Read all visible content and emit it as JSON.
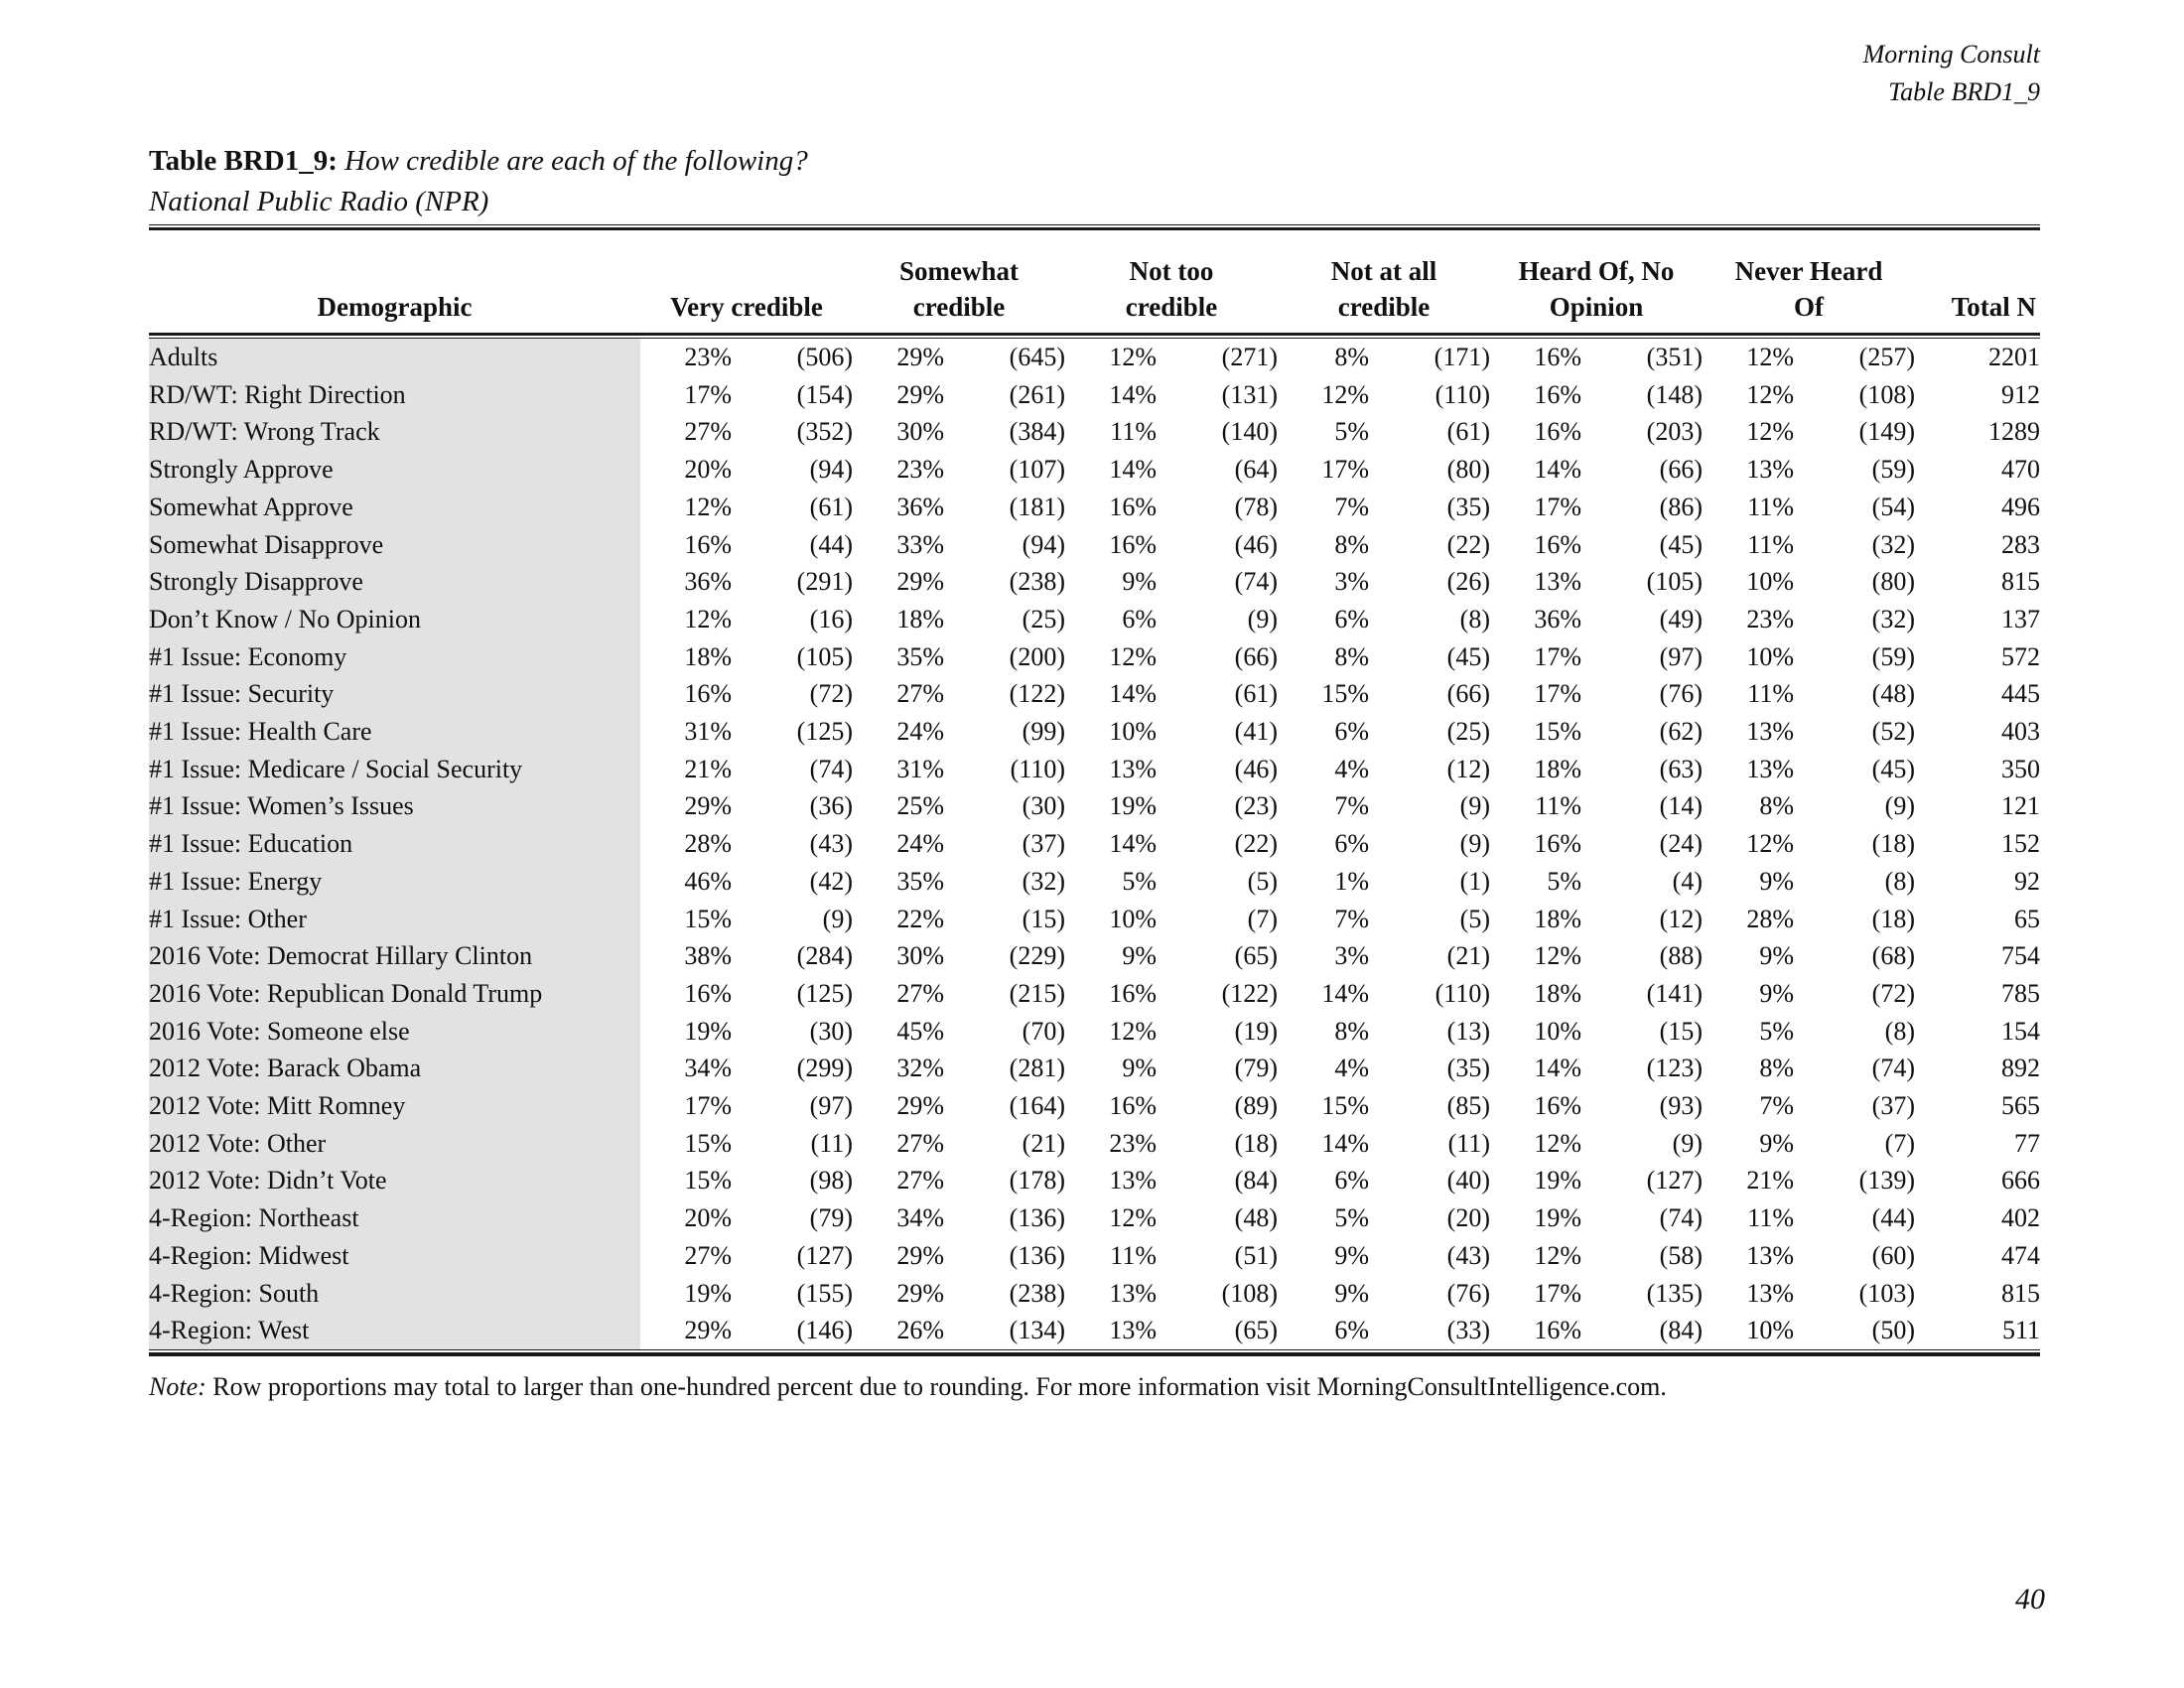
{
  "header": {
    "brand": "Morning Consult",
    "table_ref": "Table BRD1_9"
  },
  "title": {
    "label": "Table BRD1_9:",
    "question": "How credible are each of the following?",
    "subject": "National Public Radio (NPR)"
  },
  "colors": {
    "demo_band": "#e2e2e2",
    "text": "#111111",
    "rule": "#1a1a1a"
  },
  "table": {
    "demographic_header": "Demographic",
    "total_header": "Total N",
    "columns": [
      {
        "lines": [
          "Very credible"
        ]
      },
      {
        "lines": [
          "Somewhat",
          "credible"
        ]
      },
      {
        "lines": [
          "Not too",
          "credible"
        ]
      },
      {
        "lines": [
          "Not at all",
          "credible"
        ]
      },
      {
        "lines": [
          "Heard Of, No",
          "Opinion"
        ]
      },
      {
        "lines": [
          "Never Heard",
          "Of"
        ]
      }
    ],
    "rows": [
      {
        "demographic": "Adults",
        "cells": [
          [
            "23%",
            "(506)"
          ],
          [
            "29%",
            "(645)"
          ],
          [
            "12%",
            "(271)"
          ],
          [
            "8%",
            "(171)"
          ],
          [
            "16%",
            "(351)"
          ],
          [
            "12%",
            "(257)"
          ]
        ],
        "total": "2201"
      },
      {
        "demographic": "RD/WT: Right Direction",
        "cells": [
          [
            "17%",
            "(154)"
          ],
          [
            "29%",
            "(261)"
          ],
          [
            "14%",
            "(131)"
          ],
          [
            "12%",
            "(110)"
          ],
          [
            "16%",
            "(148)"
          ],
          [
            "12%",
            "(108)"
          ]
        ],
        "total": "912"
      },
      {
        "demographic": "RD/WT: Wrong Track",
        "cells": [
          [
            "27%",
            "(352)"
          ],
          [
            "30%",
            "(384)"
          ],
          [
            "11%",
            "(140)"
          ],
          [
            "5%",
            "(61)"
          ],
          [
            "16%",
            "(203)"
          ],
          [
            "12%",
            "(149)"
          ]
        ],
        "total": "1289"
      },
      {
        "demographic": "Strongly Approve",
        "cells": [
          [
            "20%",
            "(94)"
          ],
          [
            "23%",
            "(107)"
          ],
          [
            "14%",
            "(64)"
          ],
          [
            "17%",
            "(80)"
          ],
          [
            "14%",
            "(66)"
          ],
          [
            "13%",
            "(59)"
          ]
        ],
        "total": "470"
      },
      {
        "demographic": "Somewhat Approve",
        "cells": [
          [
            "12%",
            "(61)"
          ],
          [
            "36%",
            "(181)"
          ],
          [
            "16%",
            "(78)"
          ],
          [
            "7%",
            "(35)"
          ],
          [
            "17%",
            "(86)"
          ],
          [
            "11%",
            "(54)"
          ]
        ],
        "total": "496"
      },
      {
        "demographic": "Somewhat Disapprove",
        "cells": [
          [
            "16%",
            "(44)"
          ],
          [
            "33%",
            "(94)"
          ],
          [
            "16%",
            "(46)"
          ],
          [
            "8%",
            "(22)"
          ],
          [
            "16%",
            "(45)"
          ],
          [
            "11%",
            "(32)"
          ]
        ],
        "total": "283"
      },
      {
        "demographic": "Strongly Disapprove",
        "cells": [
          [
            "36%",
            "(291)"
          ],
          [
            "29%",
            "(238)"
          ],
          [
            "9%",
            "(74)"
          ],
          [
            "3%",
            "(26)"
          ],
          [
            "13%",
            "(105)"
          ],
          [
            "10%",
            "(80)"
          ]
        ],
        "total": "815"
      },
      {
        "demographic": "Don’t Know / No Opinion",
        "cells": [
          [
            "12%",
            "(16)"
          ],
          [
            "18%",
            "(25)"
          ],
          [
            "6%",
            "(9)"
          ],
          [
            "6%",
            "(8)"
          ],
          [
            "36%",
            "(49)"
          ],
          [
            "23%",
            "(32)"
          ]
        ],
        "total": "137"
      },
      {
        "demographic": "#1 Issue: Economy",
        "cells": [
          [
            "18%",
            "(105)"
          ],
          [
            "35%",
            "(200)"
          ],
          [
            "12%",
            "(66)"
          ],
          [
            "8%",
            "(45)"
          ],
          [
            "17%",
            "(97)"
          ],
          [
            "10%",
            "(59)"
          ]
        ],
        "total": "572"
      },
      {
        "demographic": "#1 Issue: Security",
        "cells": [
          [
            "16%",
            "(72)"
          ],
          [
            "27%",
            "(122)"
          ],
          [
            "14%",
            "(61)"
          ],
          [
            "15%",
            "(66)"
          ],
          [
            "17%",
            "(76)"
          ],
          [
            "11%",
            "(48)"
          ]
        ],
        "total": "445"
      },
      {
        "demographic": "#1 Issue: Health Care",
        "cells": [
          [
            "31%",
            "(125)"
          ],
          [
            "24%",
            "(99)"
          ],
          [
            "10%",
            "(41)"
          ],
          [
            "6%",
            "(25)"
          ],
          [
            "15%",
            "(62)"
          ],
          [
            "13%",
            "(52)"
          ]
        ],
        "total": "403"
      },
      {
        "demographic": "#1 Issue: Medicare / Social Security",
        "cells": [
          [
            "21%",
            "(74)"
          ],
          [
            "31%",
            "(110)"
          ],
          [
            "13%",
            "(46)"
          ],
          [
            "4%",
            "(12)"
          ],
          [
            "18%",
            "(63)"
          ],
          [
            "13%",
            "(45)"
          ]
        ],
        "total": "350"
      },
      {
        "demographic": "#1 Issue: Women’s Issues",
        "cells": [
          [
            "29%",
            "(36)"
          ],
          [
            "25%",
            "(30)"
          ],
          [
            "19%",
            "(23)"
          ],
          [
            "7%",
            "(9)"
          ],
          [
            "11%",
            "(14)"
          ],
          [
            "8%",
            "(9)"
          ]
        ],
        "total": "121"
      },
      {
        "demographic": "#1 Issue: Education",
        "cells": [
          [
            "28%",
            "(43)"
          ],
          [
            "24%",
            "(37)"
          ],
          [
            "14%",
            "(22)"
          ],
          [
            "6%",
            "(9)"
          ],
          [
            "16%",
            "(24)"
          ],
          [
            "12%",
            "(18)"
          ]
        ],
        "total": "152"
      },
      {
        "demographic": "#1 Issue: Energy",
        "cells": [
          [
            "46%",
            "(42)"
          ],
          [
            "35%",
            "(32)"
          ],
          [
            "5%",
            "(5)"
          ],
          [
            "1%",
            "(1)"
          ],
          [
            "5%",
            "(4)"
          ],
          [
            "9%",
            "(8)"
          ]
        ],
        "total": "92"
      },
      {
        "demographic": "#1 Issue: Other",
        "cells": [
          [
            "15%",
            "(9)"
          ],
          [
            "22%",
            "(15)"
          ],
          [
            "10%",
            "(7)"
          ],
          [
            "7%",
            "(5)"
          ],
          [
            "18%",
            "(12)"
          ],
          [
            "28%",
            "(18)"
          ]
        ],
        "total": "65"
      },
      {
        "demographic": "2016 Vote: Democrat Hillary Clinton",
        "cells": [
          [
            "38%",
            "(284)"
          ],
          [
            "30%",
            "(229)"
          ],
          [
            "9%",
            "(65)"
          ],
          [
            "3%",
            "(21)"
          ],
          [
            "12%",
            "(88)"
          ],
          [
            "9%",
            "(68)"
          ]
        ],
        "total": "754"
      },
      {
        "demographic": "2016 Vote: Republican Donald Trump",
        "cells": [
          [
            "16%",
            "(125)"
          ],
          [
            "27%",
            "(215)"
          ],
          [
            "16%",
            "(122)"
          ],
          [
            "14%",
            "(110)"
          ],
          [
            "18%",
            "(141)"
          ],
          [
            "9%",
            "(72)"
          ]
        ],
        "total": "785"
      },
      {
        "demographic": "2016 Vote: Someone else",
        "cells": [
          [
            "19%",
            "(30)"
          ],
          [
            "45%",
            "(70)"
          ],
          [
            "12%",
            "(19)"
          ],
          [
            "8%",
            "(13)"
          ],
          [
            "10%",
            "(15)"
          ],
          [
            "5%",
            "(8)"
          ]
        ],
        "total": "154"
      },
      {
        "demographic": "2012 Vote: Barack Obama",
        "cells": [
          [
            "34%",
            "(299)"
          ],
          [
            "32%",
            "(281)"
          ],
          [
            "9%",
            "(79)"
          ],
          [
            "4%",
            "(35)"
          ],
          [
            "14%",
            "(123)"
          ],
          [
            "8%",
            "(74)"
          ]
        ],
        "total": "892"
      },
      {
        "demographic": "2012 Vote: Mitt Romney",
        "cells": [
          [
            "17%",
            "(97)"
          ],
          [
            "29%",
            "(164)"
          ],
          [
            "16%",
            "(89)"
          ],
          [
            "15%",
            "(85)"
          ],
          [
            "16%",
            "(93)"
          ],
          [
            "7%",
            "(37)"
          ]
        ],
        "total": "565"
      },
      {
        "demographic": "2012 Vote: Other",
        "cells": [
          [
            "15%",
            "(11)"
          ],
          [
            "27%",
            "(21)"
          ],
          [
            "23%",
            "(18)"
          ],
          [
            "14%",
            "(11)"
          ],
          [
            "12%",
            "(9)"
          ],
          [
            "9%",
            "(7)"
          ]
        ],
        "total": "77"
      },
      {
        "demographic": "2012 Vote: Didn’t Vote",
        "cells": [
          [
            "15%",
            "(98)"
          ],
          [
            "27%",
            "(178)"
          ],
          [
            "13%",
            "(84)"
          ],
          [
            "6%",
            "(40)"
          ],
          [
            "19%",
            "(127)"
          ],
          [
            "21%",
            "(139)"
          ]
        ],
        "total": "666"
      },
      {
        "demographic": "4-Region: Northeast",
        "cells": [
          [
            "20%",
            "(79)"
          ],
          [
            "34%",
            "(136)"
          ],
          [
            "12%",
            "(48)"
          ],
          [
            "5%",
            "(20)"
          ],
          [
            "19%",
            "(74)"
          ],
          [
            "11%",
            "(44)"
          ]
        ],
        "total": "402"
      },
      {
        "demographic": "4-Region: Midwest",
        "cells": [
          [
            "27%",
            "(127)"
          ],
          [
            "29%",
            "(136)"
          ],
          [
            "11%",
            "(51)"
          ],
          [
            "9%",
            "(43)"
          ],
          [
            "12%",
            "(58)"
          ],
          [
            "13%",
            "(60)"
          ]
        ],
        "total": "474"
      },
      {
        "demographic": "4-Region: South",
        "cells": [
          [
            "19%",
            "(155)"
          ],
          [
            "29%",
            "(238)"
          ],
          [
            "13%",
            "(108)"
          ],
          [
            "9%",
            "(76)"
          ],
          [
            "17%",
            "(135)"
          ],
          [
            "13%",
            "(103)"
          ]
        ],
        "total": "815"
      },
      {
        "demographic": "4-Region: West",
        "cells": [
          [
            "29%",
            "(146)"
          ],
          [
            "26%",
            "(134)"
          ],
          [
            "13%",
            "(65)"
          ],
          [
            "6%",
            "(33)"
          ],
          [
            "16%",
            "(84)"
          ],
          [
            "10%",
            "(50)"
          ]
        ],
        "total": "511"
      }
    ]
  },
  "note": {
    "prefix": "Note:",
    "text": "Row proportions may total to larger than one-hundred percent due to rounding. For more information visit MorningConsultIntelligence.com."
  },
  "footer": {
    "page_number": "40"
  }
}
